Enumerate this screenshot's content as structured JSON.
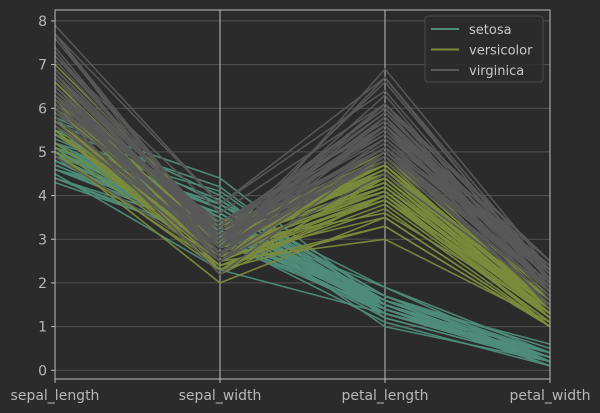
{
  "chart_data": {
    "type": "parallel_coordinates",
    "title": "",
    "axes": [
      "sepal_length",
      "sepal_width",
      "petal_length",
      "petal_width"
    ],
    "ylim": [
      -0.2,
      8.25
    ],
    "yticks": [
      0,
      1,
      2,
      3,
      4,
      5,
      6,
      7,
      8
    ],
    "grid": true,
    "legend_position": "top-right",
    "series": [
      {
        "name": "setosa",
        "color": "#4e8c79",
        "lines": [
          [
            5.1,
            3.5,
            1.4,
            0.2
          ],
          [
            4.9,
            3.0,
            1.4,
            0.2
          ],
          [
            4.7,
            3.2,
            1.3,
            0.2
          ],
          [
            4.6,
            3.1,
            1.5,
            0.2
          ],
          [
            5.0,
            3.6,
            1.4,
            0.2
          ],
          [
            5.4,
            3.9,
            1.7,
            0.4
          ],
          [
            4.6,
            3.4,
            1.4,
            0.3
          ],
          [
            5.0,
            3.4,
            1.5,
            0.2
          ],
          [
            4.4,
            2.9,
            1.4,
            0.2
          ],
          [
            4.9,
            3.1,
            1.5,
            0.1
          ],
          [
            5.4,
            3.7,
            1.5,
            0.2
          ],
          [
            4.8,
            3.4,
            1.6,
            0.2
          ],
          [
            4.8,
            3.0,
            1.4,
            0.1
          ],
          [
            4.3,
            3.0,
            1.1,
            0.1
          ],
          [
            5.8,
            4.0,
            1.2,
            0.2
          ],
          [
            5.7,
            4.4,
            1.5,
            0.4
          ],
          [
            5.4,
            3.9,
            1.3,
            0.4
          ],
          [
            5.1,
            3.5,
            1.4,
            0.3
          ],
          [
            5.7,
            3.8,
            1.7,
            0.3
          ],
          [
            5.1,
            3.8,
            1.5,
            0.3
          ],
          [
            5.4,
            3.4,
            1.7,
            0.2
          ],
          [
            5.1,
            3.7,
            1.5,
            0.4
          ],
          [
            4.6,
            3.6,
            1.0,
            0.2
          ],
          [
            5.1,
            3.3,
            1.7,
            0.5
          ],
          [
            4.8,
            3.4,
            1.9,
            0.2
          ],
          [
            5.0,
            3.0,
            1.6,
            0.2
          ],
          [
            5.0,
            3.4,
            1.6,
            0.4
          ],
          [
            5.2,
            3.5,
            1.5,
            0.2
          ],
          [
            5.2,
            3.4,
            1.4,
            0.2
          ],
          [
            4.7,
            3.2,
            1.6,
            0.2
          ],
          [
            4.8,
            3.1,
            1.6,
            0.2
          ],
          [
            5.4,
            3.4,
            1.5,
            0.4
          ],
          [
            5.2,
            4.1,
            1.5,
            0.1
          ],
          [
            5.5,
            4.2,
            1.4,
            0.2
          ],
          [
            4.9,
            3.1,
            1.5,
            0.2
          ],
          [
            5.0,
            3.2,
            1.2,
            0.2
          ],
          [
            5.5,
            3.5,
            1.3,
            0.2
          ],
          [
            4.9,
            3.6,
            1.4,
            0.1
          ],
          [
            4.4,
            3.0,
            1.3,
            0.2
          ],
          [
            5.1,
            3.4,
            1.5,
            0.2
          ],
          [
            5.0,
            3.5,
            1.3,
            0.3
          ],
          [
            4.5,
            2.3,
            1.3,
            0.3
          ],
          [
            4.4,
            3.2,
            1.3,
            0.2
          ],
          [
            5.0,
            3.5,
            1.6,
            0.6
          ],
          [
            5.1,
            3.8,
            1.9,
            0.4
          ],
          [
            4.8,
            3.0,
            1.4,
            0.3
          ],
          [
            5.1,
            3.8,
            1.6,
            0.2
          ],
          [
            4.6,
            3.2,
            1.4,
            0.2
          ],
          [
            5.3,
            3.7,
            1.5,
            0.2
          ],
          [
            5.0,
            3.3,
            1.4,
            0.2
          ]
        ]
      },
      {
        "name": "versicolor",
        "color": "#7b8a3c",
        "lines": [
          [
            7.0,
            3.2,
            4.7,
            1.4
          ],
          [
            6.4,
            3.2,
            4.5,
            1.5
          ],
          [
            6.9,
            3.1,
            4.9,
            1.5
          ],
          [
            5.5,
            2.3,
            4.0,
            1.3
          ],
          [
            6.5,
            2.8,
            4.6,
            1.5
          ],
          [
            5.7,
            2.8,
            4.5,
            1.3
          ],
          [
            6.3,
            3.3,
            4.7,
            1.6
          ],
          [
            4.9,
            2.4,
            3.3,
            1.0
          ],
          [
            6.6,
            2.9,
            4.6,
            1.3
          ],
          [
            5.2,
            2.7,
            3.9,
            1.4
          ],
          [
            5.0,
            2.0,
            3.5,
            1.0
          ],
          [
            5.9,
            3.0,
            4.2,
            1.5
          ],
          [
            6.0,
            2.2,
            4.0,
            1.0
          ],
          [
            6.1,
            2.9,
            4.7,
            1.4
          ],
          [
            5.6,
            2.9,
            3.6,
            1.3
          ],
          [
            6.7,
            3.1,
            4.4,
            1.4
          ],
          [
            5.6,
            3.0,
            4.5,
            1.5
          ],
          [
            5.8,
            2.7,
            4.1,
            1.0
          ],
          [
            6.2,
            2.2,
            4.5,
            1.5
          ],
          [
            5.6,
            2.5,
            3.9,
            1.1
          ],
          [
            5.9,
            3.2,
            4.8,
            1.8
          ],
          [
            6.1,
            2.8,
            4.0,
            1.3
          ],
          [
            6.3,
            2.5,
            4.9,
            1.5
          ],
          [
            6.1,
            2.8,
            4.7,
            1.2
          ],
          [
            6.4,
            2.9,
            4.3,
            1.3
          ],
          [
            6.6,
            3.0,
            4.4,
            1.4
          ],
          [
            6.8,
            2.8,
            4.8,
            1.4
          ],
          [
            6.7,
            3.0,
            5.0,
            1.7
          ],
          [
            6.0,
            2.9,
            4.5,
            1.5
          ],
          [
            5.7,
            2.6,
            3.5,
            1.0
          ],
          [
            5.5,
            2.4,
            3.8,
            1.1
          ],
          [
            5.5,
            2.4,
            3.7,
            1.0
          ],
          [
            5.8,
            2.7,
            3.9,
            1.2
          ],
          [
            6.0,
            2.7,
            5.1,
            1.6
          ],
          [
            5.4,
            3.0,
            4.5,
            1.5
          ],
          [
            6.0,
            3.4,
            4.5,
            1.6
          ],
          [
            6.7,
            3.1,
            4.7,
            1.5
          ],
          [
            6.3,
            2.3,
            4.4,
            1.3
          ],
          [
            5.6,
            3.0,
            4.1,
            1.3
          ],
          [
            5.5,
            2.5,
            4.0,
            1.3
          ],
          [
            5.5,
            2.6,
            4.4,
            1.2
          ],
          [
            6.1,
            3.0,
            4.6,
            1.4
          ],
          [
            5.8,
            2.6,
            4.0,
            1.2
          ],
          [
            5.0,
            2.3,
            3.3,
            1.0
          ],
          [
            5.6,
            2.7,
            4.2,
            1.3
          ],
          [
            5.7,
            3.0,
            4.2,
            1.2
          ],
          [
            5.7,
            2.9,
            4.2,
            1.3
          ],
          [
            6.2,
            2.9,
            4.3,
            1.3
          ],
          [
            5.1,
            2.5,
            3.0,
            1.1
          ],
          [
            5.7,
            2.8,
            4.1,
            1.3
          ]
        ]
      },
      {
        "name": "virginica",
        "color": "#595959",
        "lines": [
          [
            6.3,
            3.3,
            6.0,
            2.5
          ],
          [
            5.8,
            2.7,
            5.1,
            1.9
          ],
          [
            7.1,
            3.0,
            5.9,
            2.1
          ],
          [
            6.3,
            2.9,
            5.6,
            1.8
          ],
          [
            6.5,
            3.0,
            5.8,
            2.2
          ],
          [
            7.6,
            3.0,
            6.6,
            2.1
          ],
          [
            4.9,
            2.5,
            4.5,
            1.7
          ],
          [
            7.3,
            2.9,
            6.3,
            1.8
          ],
          [
            6.7,
            2.5,
            5.8,
            1.8
          ],
          [
            7.2,
            3.6,
            6.1,
            2.5
          ],
          [
            6.5,
            3.2,
            5.1,
            2.0
          ],
          [
            6.4,
            2.7,
            5.3,
            1.9
          ],
          [
            6.8,
            3.0,
            5.5,
            2.1
          ],
          [
            5.7,
            2.5,
            5.0,
            2.0
          ],
          [
            5.8,
            2.8,
            5.1,
            2.4
          ],
          [
            6.4,
            3.2,
            5.3,
            2.3
          ],
          [
            6.5,
            3.0,
            5.5,
            1.8
          ],
          [
            7.7,
            3.8,
            6.7,
            2.2
          ],
          [
            7.7,
            2.6,
            6.9,
            2.3
          ],
          [
            6.0,
            2.2,
            5.0,
            1.5
          ],
          [
            6.9,
            3.2,
            5.7,
            2.3
          ],
          [
            5.6,
            2.8,
            4.9,
            2.0
          ],
          [
            7.7,
            2.8,
            6.7,
            2.0
          ],
          [
            6.3,
            2.7,
            4.9,
            1.8
          ],
          [
            6.7,
            3.3,
            5.7,
            2.1
          ],
          [
            7.2,
            3.2,
            6.0,
            1.8
          ],
          [
            6.2,
            2.8,
            4.8,
            1.8
          ],
          [
            6.1,
            3.0,
            4.9,
            1.8
          ],
          [
            6.4,
            2.8,
            5.6,
            2.1
          ],
          [
            7.2,
            3.0,
            5.8,
            1.6
          ],
          [
            7.4,
            2.8,
            6.1,
            1.9
          ],
          [
            7.9,
            3.8,
            6.4,
            2.0
          ],
          [
            6.4,
            2.8,
            5.6,
            2.2
          ],
          [
            6.3,
            2.8,
            5.1,
            1.5
          ],
          [
            6.1,
            2.6,
            5.6,
            1.4
          ],
          [
            7.7,
            3.0,
            6.1,
            2.3
          ],
          [
            6.3,
            3.4,
            5.6,
            2.4
          ],
          [
            6.4,
            3.1,
            5.5,
            1.8
          ],
          [
            6.0,
            3.0,
            4.8,
            1.8
          ],
          [
            6.9,
            3.1,
            5.4,
            2.1
          ],
          [
            6.7,
            3.1,
            5.6,
            2.4
          ],
          [
            6.9,
            3.1,
            5.1,
            2.3
          ],
          [
            5.8,
            2.7,
            5.1,
            1.9
          ],
          [
            6.8,
            3.2,
            5.9,
            2.3
          ],
          [
            6.7,
            3.3,
            5.7,
            2.5
          ],
          [
            6.7,
            3.0,
            5.2,
            2.3
          ],
          [
            6.3,
            2.5,
            5.0,
            1.9
          ],
          [
            6.5,
            3.0,
            5.2,
            2.0
          ],
          [
            6.2,
            3.4,
            5.4,
            2.3
          ],
          [
            5.9,
            3.0,
            5.1,
            1.8
          ]
        ]
      }
    ]
  }
}
